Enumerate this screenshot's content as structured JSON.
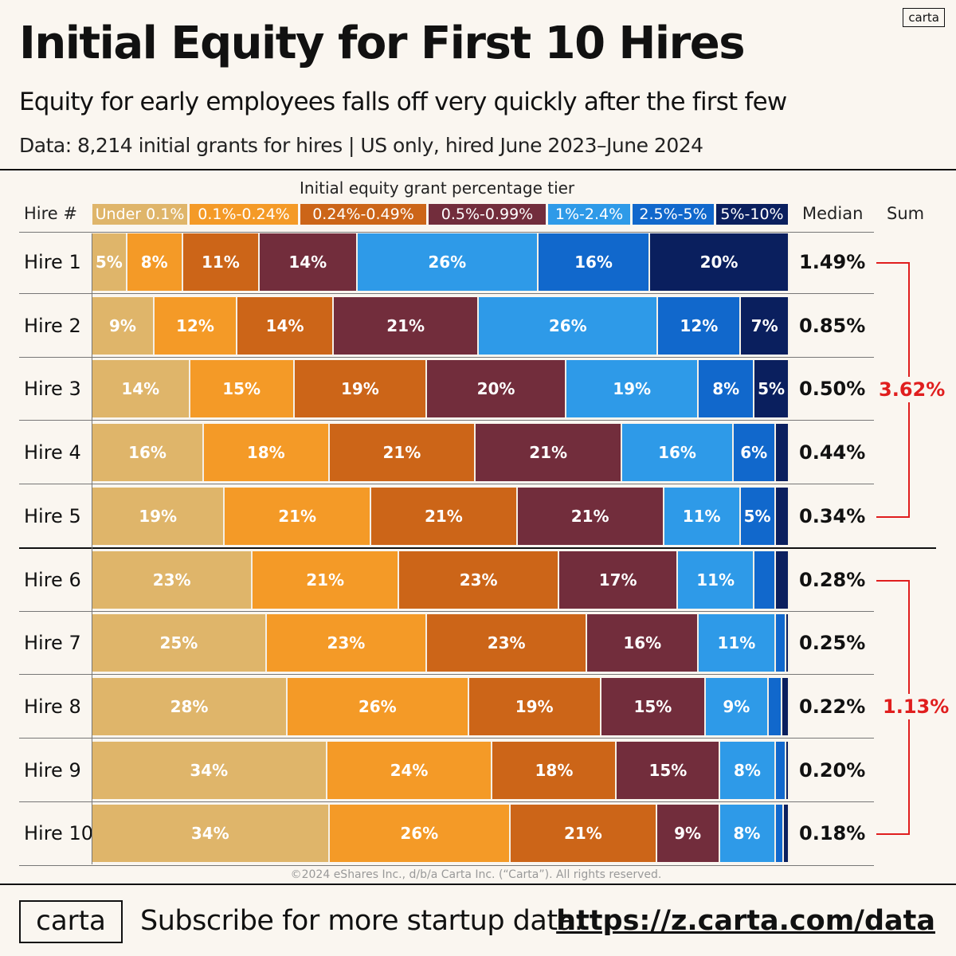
{
  "brand": "carta",
  "chart_data": {
    "type": "bar",
    "orientation": "horizontal-stacked-100",
    "title": "Initial Equity for First 10 Hires",
    "subtitle": "Equity for early employees falls off very quickly after the first few",
    "data_note": "Data: 8,214 initial grants for hires | US only, hired June 2023–June 2024",
    "legend_title": "Initial equity grant percentage tier",
    "row_header": "Hire #",
    "median_header": "Median",
    "sum_header": "Sum",
    "tiers": [
      {
        "name": "Under 0.1%",
        "color": "#dfb56a"
      },
      {
        "name": "0.1%-0.24%",
        "color": "#f49a27"
      },
      {
        "name": "0.24%-0.49%",
        "color": "#cc6518"
      },
      {
        "name": "0.5%-0.99%",
        "color": "#722d3c"
      },
      {
        "name": "1%-2.4%",
        "color": "#2e9ae8"
      },
      {
        "name": "2.5%-5%",
        "color": "#1168cc"
      },
      {
        "name": "5%-10%",
        "color": "#0a1f5e"
      }
    ],
    "categories": [
      "Hire 1",
      "Hire 2",
      "Hire 3",
      "Hire 4",
      "Hire 5",
      "Hire 6",
      "Hire 7",
      "Hire 8",
      "Hire 9",
      "Hire 10"
    ],
    "rows": [
      {
        "values": [
          5,
          8,
          11,
          14,
          26,
          16,
          20
        ],
        "labels": [
          "5%",
          "8%",
          "11%",
          "14%",
          "26%",
          "16%",
          "20%"
        ],
        "median": "1.49%"
      },
      {
        "values": [
          9,
          12,
          14,
          21,
          26,
          12,
          7
        ],
        "labels": [
          "9%",
          "12%",
          "14%",
          "21%",
          "26%",
          "12%",
          "7%"
        ],
        "median": "0.85%"
      },
      {
        "values": [
          14,
          15,
          19,
          20,
          19,
          8,
          5
        ],
        "labels": [
          "14%",
          "15%",
          "19%",
          "20%",
          "19%",
          "8%",
          "5%"
        ],
        "median": "0.50%"
      },
      {
        "values": [
          16,
          18,
          21,
          21,
          16,
          6,
          2
        ],
        "labels": [
          "16%",
          "18%",
          "21%",
          "21%",
          "16%",
          "6%",
          ""
        ],
        "median": "0.44%"
      },
      {
        "values": [
          19,
          21,
          21,
          21,
          11,
          5,
          2
        ],
        "labels": [
          "19%",
          "21%",
          "21%",
          "21%",
          "11%",
          "5%",
          ""
        ],
        "median": "0.34%"
      },
      {
        "values": [
          23,
          21,
          23,
          17,
          11,
          3,
          2
        ],
        "labels": [
          "23%",
          "21%",
          "23%",
          "17%",
          "11%",
          "",
          ""
        ],
        "median": "0.28%"
      },
      {
        "values": [
          25,
          23,
          23,
          16,
          11,
          1.5,
          0.5
        ],
        "labels": [
          "25%",
          "23%",
          "23%",
          "16%",
          "11%",
          "",
          ""
        ],
        "median": "0.25%"
      },
      {
        "values": [
          28,
          26,
          19,
          15,
          9,
          2,
          1
        ],
        "labels": [
          "28%",
          "26%",
          "19%",
          "15%",
          "9%",
          "",
          ""
        ],
        "median": "0.22%"
      },
      {
        "values": [
          34,
          24,
          18,
          15,
          8,
          1.5,
          0.5
        ],
        "labels": [
          "34%",
          "24%",
          "18%",
          "15%",
          "8%",
          "",
          ""
        ],
        "median": "0.20%"
      },
      {
        "values": [
          34,
          26,
          21,
          9,
          8,
          1.2,
          0.8
        ],
        "labels": [
          "34%",
          "26%",
          "21%",
          "9%",
          "8%",
          "",
          ""
        ],
        "median": "0.18%"
      }
    ],
    "sums": [
      {
        "label": "3.62%",
        "from": "Hire 1",
        "to": "Hire 5"
      },
      {
        "label": "1.13%",
        "from": "Hire 6",
        "to": "Hire 10"
      }
    ],
    "sum_color": "#e01e1e"
  },
  "copyright": "©2024 eShares Inc., d/b/a Carta Inc. (“Carta”). All rights reserved.",
  "footer": {
    "text": "Subscribe for more startup data:",
    "link": "https://z.carta.com/data"
  }
}
